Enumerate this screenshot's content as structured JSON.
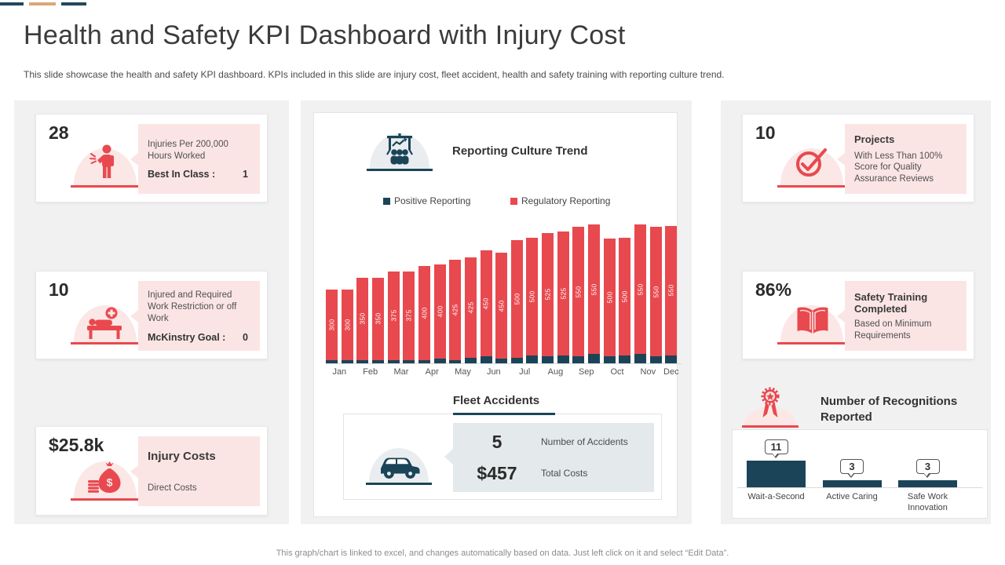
{
  "slide": {
    "title": "Health and Safety KPI Dashboard with Injury Cost",
    "subtitle": "This slide showcase the health and safety KPI dashboard. KPIs included in this slide are injury cost, fleet accident, health and safety training with reporting culture trend.",
    "footer": "This graph/chart is linked to excel,  and changes automatically based on data. Just left click on it and select “Edit Data”."
  },
  "colors": {
    "accent_red": "#e8494f",
    "accent_navy": "#1b4458",
    "accent_tan": "#d9a878",
    "bubble_pink": "#fbe5e4",
    "column_gray": "#f1f1f2",
    "box_gray": "#e4e9eb"
  },
  "left_kpis": [
    {
      "value": "28",
      "icon": "injured-person-icon",
      "desc": "Injuries Per 200,000 Hours Worked",
      "goal_label": "Best In Class :",
      "goal_value": "1"
    },
    {
      "value": "10",
      "icon": "hospital-bed-icon",
      "desc": "Injured and Required Work Restriction or off Work",
      "goal_label": "McKinstry  Goal :",
      "goal_value": "0"
    },
    {
      "value": "$25.8k",
      "icon": "money-bag-icon",
      "heading": "Injury Costs",
      "desc": "Direct Costs"
    }
  ],
  "right_kpis": [
    {
      "value": "10",
      "icon": "check-circle-icon",
      "heading": "Projects",
      "desc": "With Less Than 100% Score for Quality Assurance Reviews"
    },
    {
      "value": "86%",
      "icon": "open-book-icon",
      "heading": "Safety Training Completed",
      "desc": "Based on Minimum Requirements"
    }
  ],
  "fleet": {
    "title": "Fleet Accidents",
    "icon": "car-icon",
    "rows": [
      {
        "value": "5",
        "label": "Number of Accidents"
      },
      {
        "value": "$457",
        "label": "Total Costs"
      }
    ]
  },
  "chart_data": [
    {
      "type": "bar",
      "variant": "stacked-paired-columns",
      "title": "Reporting Culture Trend",
      "icon": "presentation-audience-icon",
      "legend": [
        {
          "label": "Positive Reporting",
          "color": "#1b4458"
        },
        {
          "label": "Regulatory Reporting",
          "color": "#e8494f"
        }
      ],
      "months": [
        "Jan",
        "Feb",
        "Mar",
        "Apr",
        "May",
        "Jun",
        "Jul",
        "Aug",
        "Sep",
        "Oct",
        "Nov",
        "Dec"
      ],
      "ylim": [
        0,
        600
      ],
      "grid": false,
      "bars": [
        {
          "month": "Jan",
          "positive": 15,
          "regulatory": 300
        },
        {
          "month": "Jan",
          "positive": 15,
          "regulatory": 300
        },
        {
          "month": "Feb",
          "positive": 15,
          "regulatory": 350
        },
        {
          "month": "Feb",
          "positive": 15,
          "regulatory": 350
        },
        {
          "month": "Mar",
          "positive": 15,
          "regulatory": 375
        },
        {
          "month": "Mar",
          "positive": 15,
          "regulatory": 375
        },
        {
          "month": "Apr",
          "positive": 15,
          "regulatory": 400
        },
        {
          "month": "Apr",
          "positive": 20,
          "regulatory": 400
        },
        {
          "month": "May",
          "positive": 15,
          "regulatory": 425
        },
        {
          "month": "May",
          "positive": 25,
          "regulatory": 425
        },
        {
          "month": "Jun",
          "positive": 30,
          "regulatory": 450
        },
        {
          "month": "Jun",
          "positive": 20,
          "regulatory": 450
        },
        {
          "month": "Jul",
          "positive": 25,
          "regulatory": 500
        },
        {
          "month": "Jul",
          "positive": 35,
          "regulatory": 500
        },
        {
          "month": "Aug",
          "positive": 30,
          "regulatory": 525
        },
        {
          "month": "Aug",
          "positive": 35,
          "regulatory": 525
        },
        {
          "month": "Sep",
          "positive": 30,
          "regulatory": 550
        },
        {
          "month": "Sep",
          "positive": 40,
          "regulatory": 550
        },
        {
          "month": "Oct",
          "positive": 30,
          "regulatory": 500
        },
        {
          "month": "Oct",
          "positive": 35,
          "regulatory": 500
        },
        {
          "month": "Nov",
          "positive": 40,
          "regulatory": 550
        },
        {
          "month": "Nov",
          "positive": 30,
          "regulatory": 550
        },
        {
          "month": "Dec",
          "positive": 35,
          "regulatory": 550
        }
      ]
    },
    {
      "type": "bar",
      "title": "Number of Recognitions Reported",
      "icon": "medal-ribbon-icon",
      "categories": [
        "Wait-a-Second",
        "Active Caring",
        "Safe Work Innovation"
      ],
      "values": [
        11,
        3,
        3
      ],
      "grid": false
    }
  ]
}
